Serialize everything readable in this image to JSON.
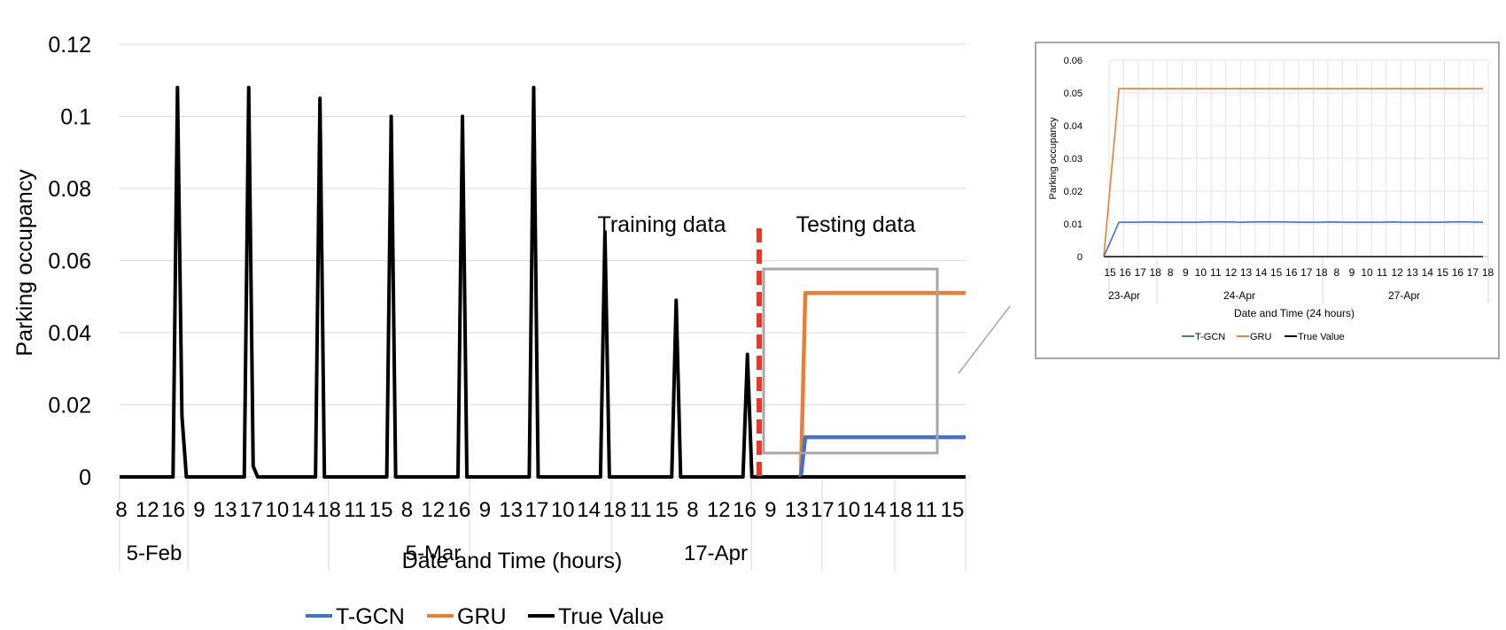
{
  "colors": {
    "tgcn": "#4472C4",
    "gru": "#ED7D31",
    "true_value": "#000000",
    "split_line": "#E8382B",
    "grid": "#d9d9d9",
    "zoom_box": "#a6a6a6"
  },
  "chart_data": [
    {
      "type": "line",
      "title": "",
      "xlabel": "Date and Time (hours)",
      "ylabel": "Parking occupancy",
      "ylim": [
        0,
        0.12
      ],
      "y_ticks": [
        "0",
        "0.02",
        "0.04",
        "0.06",
        "0.08",
        "0.1",
        "0.12"
      ],
      "grid": true,
      "legend_position": "bottom",
      "x_tick_labels": [
        "8",
        "12",
        "16",
        "9",
        "13",
        "17",
        "10",
        "14",
        "18",
        "11",
        "15",
        "8",
        "12",
        "16",
        "9",
        "13",
        "17",
        "10",
        "14",
        "18",
        "11",
        "15",
        "8",
        "12",
        "16",
        "9",
        "13",
        "17",
        "10",
        "14",
        "18",
        "11",
        "15"
      ],
      "x_group_labels": [
        "5-Feb",
        "5-Mar",
        "17-Apr"
      ],
      "annotations": {
        "training": "Training data",
        "testing": "Testing data"
      },
      "series": [
        {
          "name": "True Value",
          "points": [
            [
              0,
              0
            ],
            [
              12,
              0
            ],
            [
              13,
              0.108
            ],
            [
              14,
              0.017
            ],
            [
              15,
              0
            ],
            [
              28,
              0
            ],
            [
              29,
              0.108
            ],
            [
              30,
              0.003
            ],
            [
              31,
              0
            ],
            [
              44,
              0
            ],
            [
              45,
              0.105
            ],
            [
              46,
              0
            ],
            [
              60,
              0
            ],
            [
              61,
              0.1
            ],
            [
              62,
              0
            ],
            [
              76,
              0
            ],
            [
              77,
              0.1
            ],
            [
              78,
              0
            ],
            [
              92,
              0
            ],
            [
              93,
              0.108
            ],
            [
              94,
              0
            ],
            [
              108,
              0
            ],
            [
              109,
              0.068
            ],
            [
              110,
              0
            ],
            [
              124,
              0
            ],
            [
              125,
              0.049
            ],
            [
              126,
              0
            ],
            [
              140,
              0
            ],
            [
              141,
              0.034
            ],
            [
              142,
              0
            ],
            [
              190,
              0
            ]
          ]
        },
        {
          "name": "GRU",
          "points": [
            [
              153,
              0
            ],
            [
              154,
              0.051
            ],
            [
              190,
              0.051
            ]
          ]
        },
        {
          "name": "T-GCN",
          "points": [
            [
              153,
              0
            ],
            [
              154,
              0.011
            ],
            [
              190,
              0.011
            ]
          ]
        }
      ]
    },
    {
      "type": "line",
      "title": "",
      "xlabel": "Date and Time (24 hours)",
      "ylabel": "Parking occupancy",
      "ylim": [
        0,
        0.06
      ],
      "y_ticks": [
        "0",
        "0.01",
        "0.02",
        "0.03",
        "0.04",
        "0.05",
        "0.06"
      ],
      "grid": true,
      "legend_position": "bottom",
      "x_tick_labels": [
        "15",
        "16",
        "17",
        "18",
        "8",
        "9",
        "10",
        "11",
        "12",
        "13",
        "14",
        "15",
        "16",
        "17",
        "18",
        "8",
        "9",
        "10",
        "11",
        "12",
        "13",
        "14",
        "15",
        "16",
        "17",
        "18"
      ],
      "x_group_labels": [
        "23-Apr",
        "24-Apr",
        "27-Apr"
      ],
      "series": [
        {
          "name": "T-GCN",
          "values": [
            0,
            0.0105,
            0.0105,
            0.0106,
            0.0105,
            0.0105,
            0.0105,
            0.0106,
            0.0106,
            0.0105,
            0.0106,
            0.0106,
            0.0106,
            0.0105,
            0.0105,
            0.0106,
            0.0105,
            0.0105,
            0.0105,
            0.0106,
            0.0105,
            0.0105,
            0.0105,
            0.0106,
            0.0106,
            0.0105
          ]
        },
        {
          "name": "GRU",
          "values": [
            0,
            0.0513,
            0.0513,
            0.0513,
            0.0513,
            0.0513,
            0.0513,
            0.0513,
            0.0513,
            0.0513,
            0.0513,
            0.0513,
            0.0513,
            0.0513,
            0.0513,
            0.0513,
            0.0513,
            0.0513,
            0.0513,
            0.0513,
            0.0513,
            0.0513,
            0.0513,
            0.0513,
            0.0513,
            0.0513
          ]
        },
        {
          "name": "True Value",
          "values": [
            0,
            0,
            0,
            0,
            0,
            0,
            0,
            0,
            0,
            0,
            0,
            0,
            0,
            0,
            0,
            0,
            0,
            0,
            0,
            0,
            0,
            0,
            0,
            0,
            0,
            0
          ]
        }
      ]
    }
  ]
}
